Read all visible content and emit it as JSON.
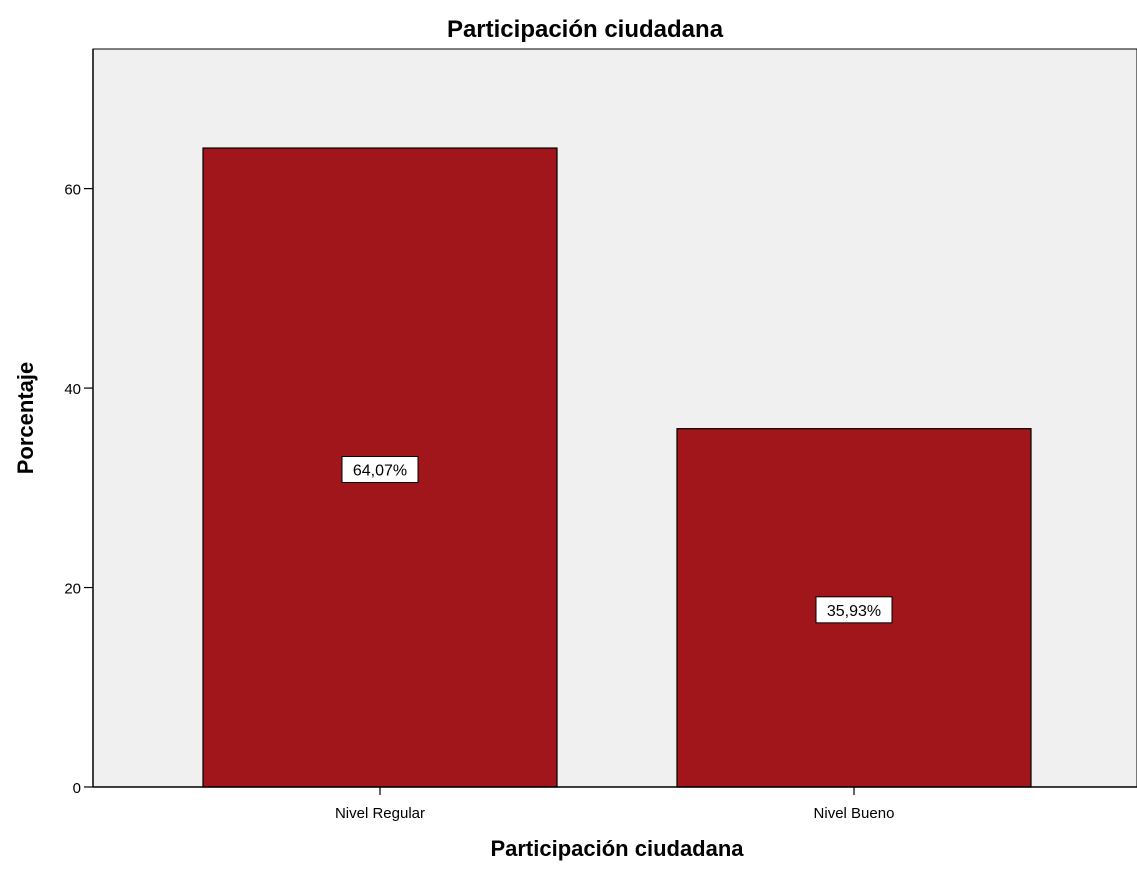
{
  "chart_data": {
    "type": "bar",
    "title": "Participación ciudadana",
    "xlabel": "Participación ciudadana",
    "ylabel": "Porcentaje",
    "categories": [
      "Nivel Regular",
      "Nivel Bueno"
    ],
    "values": [
      64.07,
      35.93
    ],
    "data_labels": [
      "64,07%",
      "35,93%"
    ],
    "ylim": [
      0,
      74
    ],
    "y_ticks": [
      0,
      20,
      40,
      60
    ],
    "y_tick_labels": [
      "0",
      "20",
      "40",
      "60"
    ],
    "grid": false,
    "legend": "none",
    "colors": {
      "bar_fill": "#A0161A",
      "plot_background": "#F0F0F0",
      "bar_border": "#000000",
      "label_box": "#FFFFFF"
    }
  }
}
